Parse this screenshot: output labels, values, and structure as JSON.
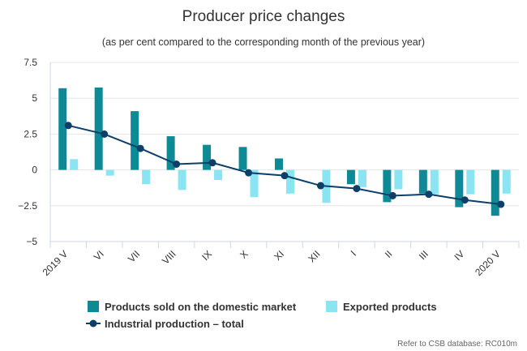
{
  "chart_data": {
    "type": "bar",
    "title": "Producer price changes",
    "subtitle": "(as per cent compared to the corresponding month of the previous year)",
    "categories": [
      "2019 V",
      "VI",
      "VII",
      "VIII",
      "IX",
      "X",
      "XI",
      "XII",
      "I",
      "II",
      "III",
      "IV",
      "2020 V"
    ],
    "ylim": [
      -5,
      7.5
    ],
    "yticks": [
      -5,
      -2.5,
      0,
      2.5,
      5,
      7.5
    ],
    "ytick_labels": [
      "−5",
      "−2.5",
      "0",
      "2.5",
      "5",
      "7.5"
    ],
    "series": [
      {
        "name": "Products sold on the domestic market",
        "kind": "bar",
        "color": "#0e8a97",
        "values": [
          5.7,
          5.75,
          4.1,
          2.35,
          1.75,
          1.6,
          0.8,
          0.0,
          -1.0,
          -2.25,
          -1.65,
          -2.6,
          -3.2
        ]
      },
      {
        "name": "Exported products",
        "kind": "bar",
        "color": "#8ae4f2",
        "values": [
          0.75,
          -0.4,
          -1.0,
          -1.4,
          -0.7,
          -1.9,
          -1.65,
          -2.3,
          -1.2,
          -1.35,
          -1.7,
          -1.7,
          -1.65
        ]
      },
      {
        "name": "Industrial production – total",
        "kind": "line",
        "color": "#0d3f68",
        "values": [
          3.1,
          2.5,
          1.5,
          0.4,
          0.5,
          -0.2,
          -0.4,
          -1.1,
          -1.3,
          -1.8,
          -1.7,
          -2.1,
          -2.4
        ]
      }
    ],
    "grid": true,
    "legend": "bottom"
  },
  "credit": "Refer to CSB database: RC010m"
}
